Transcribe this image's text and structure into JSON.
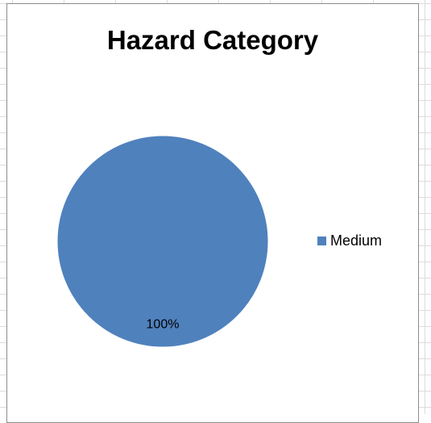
{
  "chart_data": {
    "type": "pie",
    "title": "Hazard Category",
    "slices": [
      {
        "label": "Medium",
        "value": 100,
        "data_label": "100%",
        "color": "#4f81bd"
      }
    ],
    "legend": {
      "position": "right",
      "entries": [
        "Medium"
      ]
    }
  }
}
